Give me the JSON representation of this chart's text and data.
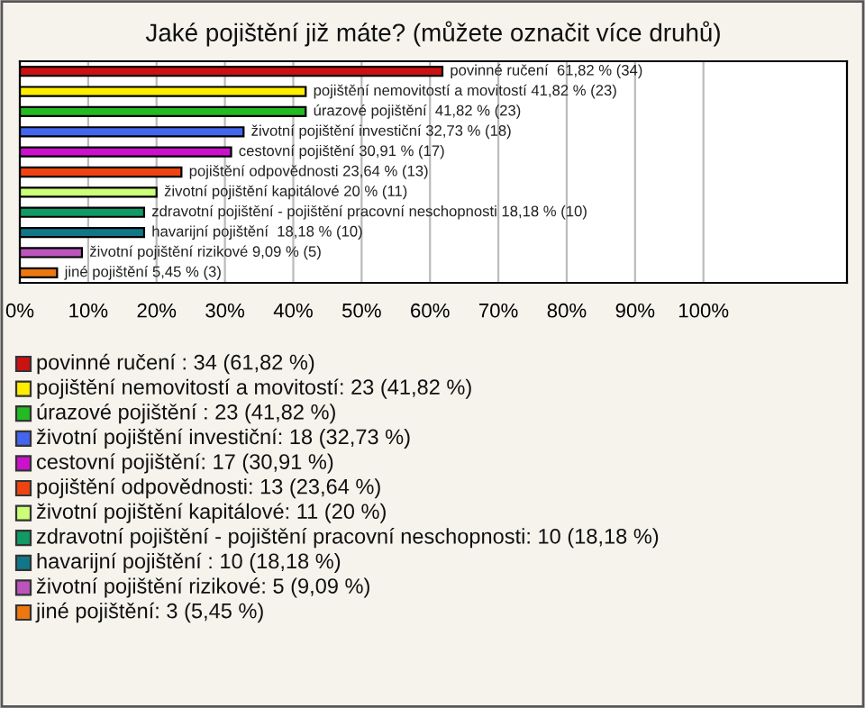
{
  "chart_data": {
    "type": "bar",
    "orientation": "horizontal",
    "title": "Jaké pojištění již máte? (můžete označit více druhů)",
    "categories": [
      null,
      null,
      null,
      null,
      null,
      null,
      null,
      null,
      null,
      null,
      null
    ],
    "values": [
      61.82,
      41.82,
      41.82,
      32.73,
      30.91,
      23.64,
      20,
      18.18,
      18.18,
      9.09,
      5.45
    ],
    "colors": [
      "#cc1111",
      "#ffee00",
      "#22bb22",
      "#4466ee",
      "#cc11cc",
      "#ee4411",
      "#ccff77",
      "#119966",
      "#117788",
      "#bb55bb",
      "#ee7711"
    ],
    "value_labels": [
      "povinné ručení  61,82 % (34)",
      "pojištění nemovitostí a movitostí 41,82 % (23)",
      "úrazové pojištění  41,82 % (23)",
      "životní pojištění investiční 32,73 % (18)",
      "cestovní pojištění 30,91 % (17)",
      "pojištění odpovědnosti 23,64 % (13)",
      "životní pojištění kapitálové 20 % (11)",
      "zdravotní pojištění - pojištění pracovní neschopnosti 18,18 % (10)",
      "havarijní pojištění  18,18 % (10)",
      "životní pojištění rizikové 9,09 % (5)",
      "jiné pojištění 5,45 % (3)"
    ],
    "annotations": [
      "povinné ručení : 34 (61,82 %)",
      "pojištění nemovitostí a movitostí: 23 (41,82 %)",
      "úrazové pojištění : 23 (41,82 %)",
      "životní pojištění investiční: 18 (32,73 %)",
      "cestovní pojištění: 17 (30,91 %)",
      "pojištění odpovědnosti: 13 (23,64 %)",
      "životní pojištění kapitálové: 11 (20 %)",
      "zdravotní pojištění - pojištění pracovní neschopnosti: 10 (18,18 %)",
      "havarijní pojištění : 10 (18,18 %)",
      "životní pojištění rizikové: 5 (9,09 %)",
      "jiné pojištění: 3 (5,45 %)"
    ],
    "xlim": [
      0,
      121
    ],
    "xticks": [
      {
        "value": 0,
        "label": "0%"
      },
      {
        "value": 10,
        "label": "10%"
      },
      {
        "value": 20,
        "label": "20%"
      },
      {
        "value": 30,
        "label": "30%"
      },
      {
        "value": 40,
        "label": "40%"
      },
      {
        "value": 50,
        "label": "50%"
      },
      {
        "value": 60,
        "label": "60%"
      },
      {
        "value": 70,
        "label": "70%"
      },
      {
        "value": 80,
        "label": "80%"
      },
      {
        "value": 90,
        "label": "90%"
      },
      {
        "value": 100,
        "label": "100%"
      }
    ],
    "grid": "x"
  }
}
